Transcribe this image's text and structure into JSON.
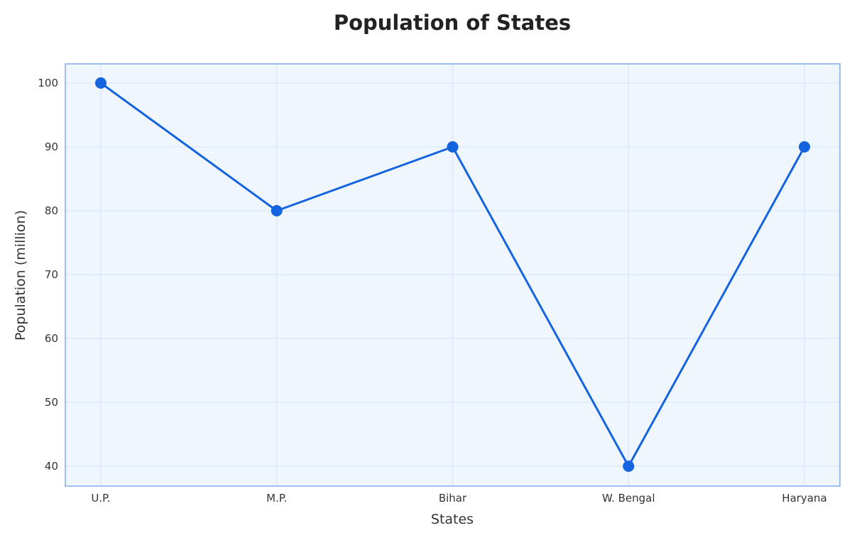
{
  "chart_data": {
    "type": "line",
    "title": "Population of States",
    "xlabel": "States",
    "ylabel": "Population (million)",
    "categories": [
      "U.P.",
      "M.P.",
      "Bihar",
      "W. Bengal",
      "Haryana"
    ],
    "series": [
      {
        "name": "Population",
        "values": [
          100,
          80,
          90,
          40,
          90
        ],
        "color": "#1464e0"
      }
    ],
    "ylim": [
      37,
      103
    ],
    "yticks": [
      40,
      50,
      60,
      70,
      80,
      90,
      100
    ],
    "grid": true,
    "legend": null
  },
  "colors": {
    "plot_background": "#f0f6fe",
    "frame": "#9dbff0",
    "grid": "#dce8fb",
    "line": "#1464e0"
  }
}
